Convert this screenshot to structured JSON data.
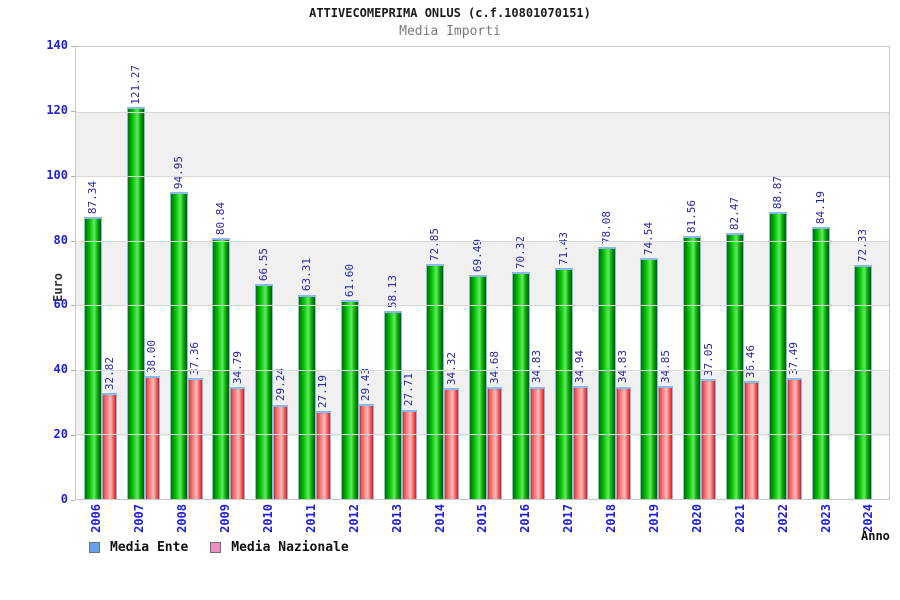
{
  "header": {
    "title": "ATTIVECOMEPRIMA ONLUS (c.f.10801070151)",
    "subtitle": "Media Importi"
  },
  "chart_data": {
    "type": "bar",
    "title": "ATTIVECOMEPRIMA ONLUS (c.f.10801070151)",
    "subtitle": "Media Importi",
    "xlabel": "Anno",
    "ylabel": "Euro",
    "ylim": [
      0,
      140
    ],
    "ytick_step": 20,
    "grid": true,
    "legend_position": "bottom-left",
    "categories": [
      "2006",
      "2007",
      "2008",
      "2009",
      "2010",
      "2011",
      "2012",
      "2013",
      "2014",
      "2015",
      "2016",
      "2017",
      "2018",
      "2019",
      "2020",
      "2021",
      "2022",
      "2023",
      "2024"
    ],
    "series": [
      {
        "name": "Media Ente",
        "legend_color": "#64a3ea",
        "bar_color": "#00c400",
        "values": [
          87.34,
          121.27,
          94.95,
          80.84,
          66.55,
          63.31,
          61.6,
          58.13,
          72.85,
          69.49,
          70.32,
          71.43,
          78.08,
          74.54,
          81.56,
          82.47,
          88.87,
          84.19,
          72.33
        ]
      },
      {
        "name": "Media Nazionale",
        "legend_color": "#ee8fc2",
        "bar_color": "#f3a3a3",
        "values": [
          32.82,
          38.0,
          37.36,
          34.79,
          29.24,
          27.19,
          29.43,
          27.71,
          34.32,
          34.68,
          34.83,
          34.94,
          34.83,
          34.85,
          37.05,
          36.46,
          37.49,
          null,
          null
        ]
      }
    ]
  },
  "colors": {
    "value_label": "#28289e",
    "axis_label": "#2020d8",
    "band": "#f0f0f0",
    "bar_border": "#8fb8ea"
  }
}
